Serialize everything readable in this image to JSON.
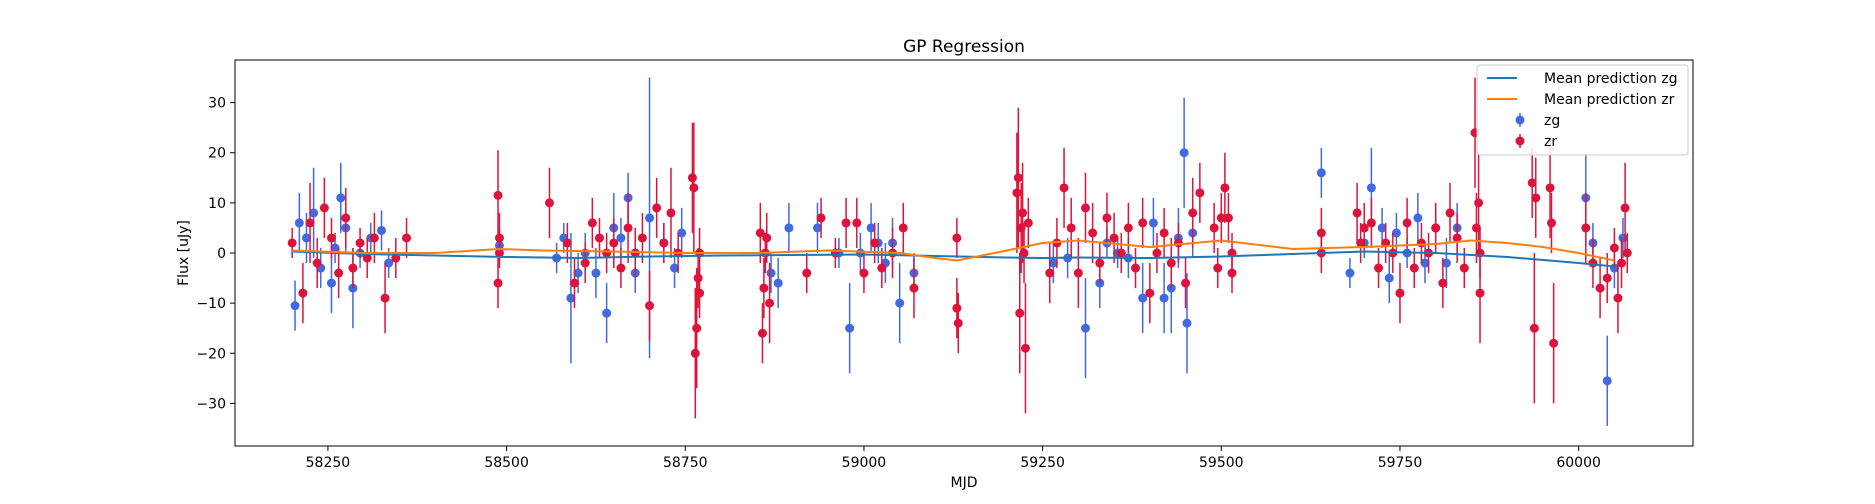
{
  "chart_data": {
    "type": "scatter",
    "title": "GP Regression",
    "xlabel": "MJD",
    "ylabel": "Flux [uJy]",
    "xlim": [
      58120,
      60160
    ],
    "ylim": [
      -38.5,
      38.5
    ],
    "xticks": [
      58250,
      58500,
      58750,
      59000,
      59250,
      59500,
      59750,
      60000
    ],
    "yticks": [
      -30,
      -20,
      -10,
      0,
      10,
      20,
      30
    ],
    "ytick_labels": [
      "−30",
      "−20",
      "−10",
      "0",
      "10",
      "20",
      "30"
    ],
    "legend_position": "top-right",
    "grid": false,
    "colors": {
      "zg_points": "#4169E1",
      "zr_points": "#DC143C",
      "zg_line": "#1f77b4",
      "zr_line": "#ff7f0e"
    },
    "lines": [
      {
        "name": "Mean prediction zg",
        "x": [
          58200,
          58300,
          58400,
          58500,
          58600,
          58700,
          58800,
          58900,
          59000,
          59100,
          59200,
          59250,
          59300,
          59400,
          59500,
          59600,
          59700,
          59800,
          59900,
          60000,
          60050
        ],
        "y": [
          0.3,
          -0.2,
          -0.5,
          -0.8,
          -1.0,
          -0.7,
          -0.5,
          -0.4,
          -0.3,
          -0.6,
          -0.9,
          -1.0,
          -0.9,
          -1.0,
          -0.7,
          -0.2,
          0.3,
          0.0,
          -0.8,
          -2.0,
          -2.7
        ]
      },
      {
        "name": "Mean prediction zr",
        "x": [
          58200,
          58300,
          58400,
          58490,
          58550,
          58650,
          58750,
          58850,
          58950,
          59050,
          59100,
          59130,
          59200,
          59250,
          59300,
          59400,
          59500,
          59600,
          59700,
          59800,
          59850,
          59900,
          59950,
          60000,
          60050
        ],
        "y": [
          0.5,
          0.0,
          0.0,
          0.8,
          0.5,
          0.3,
          0.0,
          0.0,
          0.5,
          0.0,
          -1.0,
          -1.5,
          0.5,
          2.0,
          2.5,
          1.2,
          2.5,
          0.8,
          1.2,
          1.8,
          2.5,
          2.0,
          1.2,
          0.0,
          -1.5
        ]
      }
    ],
    "series": [
      {
        "name": "zg",
        "points": [
          [
            58204,
            -10.5,
            5
          ],
          [
            58210,
            6,
            6
          ],
          [
            58220,
            3,
            5
          ],
          [
            58230,
            8,
            9
          ],
          [
            58240,
            -3,
            4
          ],
          [
            58255,
            -6,
            6
          ],
          [
            58260,
            1,
            3
          ],
          [
            58268,
            11,
            7
          ],
          [
            58275,
            5,
            5
          ],
          [
            58285,
            -7,
            8
          ],
          [
            58295,
            0,
            3
          ],
          [
            58310,
            3,
            3
          ],
          [
            58325,
            4.5,
            4
          ],
          [
            58335,
            -2,
            3
          ],
          [
            58490,
            1.5,
            3
          ],
          [
            58570,
            -1,
            3
          ],
          [
            58580,
            3,
            3
          ],
          [
            58590,
            -9,
            13
          ],
          [
            58600,
            -4,
            4
          ],
          [
            58610,
            0,
            4
          ],
          [
            58625,
            -4,
            5
          ],
          [
            58640,
            -12,
            6
          ],
          [
            58650,
            5,
            7
          ],
          [
            58660,
            3,
            4
          ],
          [
            58670,
            11,
            5
          ],
          [
            58680,
            -4,
            4
          ],
          [
            58700,
            7,
            28
          ],
          [
            58720,
            2,
            4
          ],
          [
            58735,
            -3,
            4
          ],
          [
            58745,
            4,
            5
          ],
          [
            58870,
            -4,
            4
          ],
          [
            58880,
            -6,
            5
          ],
          [
            58895,
            5,
            5
          ],
          [
            58935,
            5,
            5
          ],
          [
            58965,
            0,
            3
          ],
          [
            58980,
            -15,
            9
          ],
          [
            58995,
            0,
            4
          ],
          [
            59010,
            5,
            5
          ],
          [
            59020,
            2,
            4
          ],
          [
            59030,
            -2,
            4
          ],
          [
            59040,
            2,
            5
          ],
          [
            59050,
            -10,
            8
          ],
          [
            59070,
            -4,
            4
          ],
          [
            59265,
            -2,
            4
          ],
          [
            59285,
            -1,
            4
          ],
          [
            59310,
            -15,
            10
          ],
          [
            59330,
            -6,
            5
          ],
          [
            59340,
            2,
            3
          ],
          [
            59355,
            0,
            3
          ],
          [
            59370,
            -1,
            4
          ],
          [
            59390,
            -9,
            7
          ],
          [
            59405,
            6,
            5
          ],
          [
            59420,
            -9,
            7
          ],
          [
            59430,
            -7,
            9
          ],
          [
            59440,
            3,
            6
          ],
          [
            59448,
            20,
            11
          ],
          [
            59452,
            -14,
            10
          ],
          [
            59460,
            4,
            5
          ],
          [
            59640,
            16,
            5
          ],
          [
            59680,
            -4,
            3
          ],
          [
            59700,
            2,
            3
          ],
          [
            59710,
            13,
            8
          ],
          [
            59725,
            5,
            4
          ],
          [
            59735,
            -5,
            5
          ],
          [
            59745,
            4,
            4
          ],
          [
            59760,
            0,
            3
          ],
          [
            59775,
            7,
            5
          ],
          [
            59785,
            -2,
            4
          ],
          [
            59800,
            5,
            4
          ],
          [
            59815,
            -2,
            5
          ],
          [
            59830,
            5,
            5
          ],
          [
            60010,
            11,
            9
          ],
          [
            60020,
            2,
            4
          ],
          [
            60040,
            -25.5,
            9
          ],
          [
            60050,
            -3,
            4
          ],
          [
            60062,
            3,
            4
          ]
        ]
      },
      {
        "name": "zr",
        "points": [
          [
            58200,
            2,
            3
          ],
          [
            58215,
            -8,
            6
          ],
          [
            58225,
            6,
            8
          ],
          [
            58235,
            -2,
            5
          ],
          [
            58245,
            9,
            6
          ],
          [
            58255,
            3,
            4
          ],
          [
            58265,
            -4,
            5
          ],
          [
            58275,
            7,
            6
          ],
          [
            58285,
            -3,
            4
          ],
          [
            58295,
            2,
            3
          ],
          [
            58305,
            -1,
            4
          ],
          [
            58315,
            3,
            5
          ],
          [
            58330,
            -9,
            7
          ],
          [
            58345,
            -1,
            4
          ],
          [
            58360,
            3,
            4
          ],
          [
            58488,
            11.5,
            9
          ],
          [
            58488,
            -6,
            5
          ],
          [
            58490,
            3,
            5
          ],
          [
            58490,
            0,
            3
          ],
          [
            58560,
            10,
            7
          ],
          [
            58585,
            2,
            4
          ],
          [
            58595,
            -6,
            5
          ],
          [
            58610,
            -2,
            4
          ],
          [
            58620,
            6,
            5
          ],
          [
            58630,
            3,
            4
          ],
          [
            58640,
            0,
            4
          ],
          [
            58650,
            2,
            5
          ],
          [
            58660,
            -3,
            4
          ],
          [
            58670,
            5,
            7
          ],
          [
            58680,
            0,
            5
          ],
          [
            58690,
            3,
            5
          ],
          [
            58700,
            -10.5,
            7
          ],
          [
            58710,
            9,
            6
          ],
          [
            58720,
            2,
            4
          ],
          [
            58730,
            8,
            9
          ],
          [
            58740,
            0,
            4
          ],
          [
            58760,
            15,
            11
          ],
          [
            58762,
            13,
            13
          ],
          [
            58764,
            -20,
            13
          ],
          [
            58766,
            -15,
            12
          ],
          [
            58768,
            -5,
            6
          ],
          [
            58770,
            0,
            5
          ],
          [
            58770,
            -8,
            5
          ],
          [
            58855,
            4,
            6
          ],
          [
            58858,
            -16,
            6
          ],
          [
            58860,
            -7,
            6
          ],
          [
            58862,
            0,
            4
          ],
          [
            58864,
            3,
            5
          ],
          [
            58868,
            -10,
            8
          ],
          [
            58920,
            -4,
            4
          ],
          [
            58940,
            7,
            4
          ],
          [
            58960,
            0,
            3
          ],
          [
            58975,
            6,
            5
          ],
          [
            58990,
            6,
            5
          ],
          [
            59000,
            -4,
            4
          ],
          [
            59015,
            2,
            4
          ],
          [
            59025,
            -3,
            4
          ],
          [
            59040,
            0,
            5
          ],
          [
            59055,
            5,
            5
          ],
          [
            59070,
            -7,
            6
          ],
          [
            59130,
            3,
            4
          ],
          [
            59130,
            -11,
            6
          ],
          [
            59132,
            -14,
            6
          ],
          [
            59214,
            12,
            12
          ],
          [
            59216,
            15,
            14
          ],
          [
            59218,
            -12,
            12
          ],
          [
            59220,
            5,
            9
          ],
          [
            59222,
            8,
            10
          ],
          [
            59224,
            0,
            6
          ],
          [
            59226,
            -19,
            13
          ],
          [
            59230,
            6,
            5
          ],
          [
            59260,
            -4,
            6
          ],
          [
            59270,
            2,
            5
          ],
          [
            59280,
            13,
            8
          ],
          [
            59290,
            5,
            6
          ],
          [
            59300,
            -4,
            7
          ],
          [
            59310,
            9,
            7
          ],
          [
            59320,
            4,
            6
          ],
          [
            59330,
            -2,
            4
          ],
          [
            59340,
            7,
            5
          ],
          [
            59350,
            3,
            5
          ],
          [
            59360,
            0,
            4
          ],
          [
            59370,
            5,
            5
          ],
          [
            59380,
            -3,
            4
          ],
          [
            59390,
            6,
            5
          ],
          [
            59400,
            -8,
            6
          ],
          [
            59410,
            0,
            4
          ],
          [
            59420,
            4,
            5
          ],
          [
            59430,
            -2,
            5
          ],
          [
            59440,
            2,
            4
          ],
          [
            59450,
            -6,
            5
          ],
          [
            59460,
            8,
            7
          ],
          [
            59470,
            12,
            6
          ],
          [
            59490,
            5,
            5
          ],
          [
            59495,
            -3,
            4
          ],
          [
            59500,
            7,
            5
          ],
          [
            59505,
            13,
            7
          ],
          [
            59510,
            7,
            5
          ],
          [
            59515,
            0,
            4
          ],
          [
            59515,
            -4,
            4
          ],
          [
            59640,
            4,
            5
          ],
          [
            59640,
            0,
            4
          ],
          [
            59690,
            8,
            6
          ],
          [
            59695,
            2,
            4
          ],
          [
            59700,
            5,
            5
          ],
          [
            59710,
            6,
            5
          ],
          [
            59720,
            -3,
            4
          ],
          [
            59730,
            2,
            4
          ],
          [
            59740,
            0,
            4
          ],
          [
            59750,
            -8,
            6
          ],
          [
            59760,
            6,
            5
          ],
          [
            59770,
            -3,
            4
          ],
          [
            59780,
            2,
            4
          ],
          [
            59790,
            0,
            4
          ],
          [
            59800,
            5,
            5
          ],
          [
            59810,
            -6,
            5
          ],
          [
            59820,
            8,
            6
          ],
          [
            59830,
            3,
            5
          ],
          [
            59840,
            -3,
            4
          ],
          [
            59855,
            24,
            11
          ],
          [
            59857,
            5,
            7
          ],
          [
            59860,
            10,
            10
          ],
          [
            59862,
            0,
            5
          ],
          [
            59862,
            -8,
            10
          ],
          [
            59935,
            14,
            7
          ],
          [
            59938,
            -15,
            15
          ],
          [
            59940,
            11,
            8
          ],
          [
            59960,
            13,
            10
          ],
          [
            59962,
            6,
            6
          ],
          [
            59965,
            -18,
            12
          ],
          [
            60010,
            5,
            7
          ],
          [
            60020,
            -2,
            5
          ],
          [
            60030,
            -7,
            6
          ],
          [
            60040,
            -5,
            5
          ],
          [
            60050,
            1,
            4
          ],
          [
            60055,
            -9,
            7
          ],
          [
            60060,
            -2,
            5
          ],
          [
            60065,
            9,
            9
          ],
          [
            60068,
            0,
            4
          ]
        ]
      }
    ]
  }
}
